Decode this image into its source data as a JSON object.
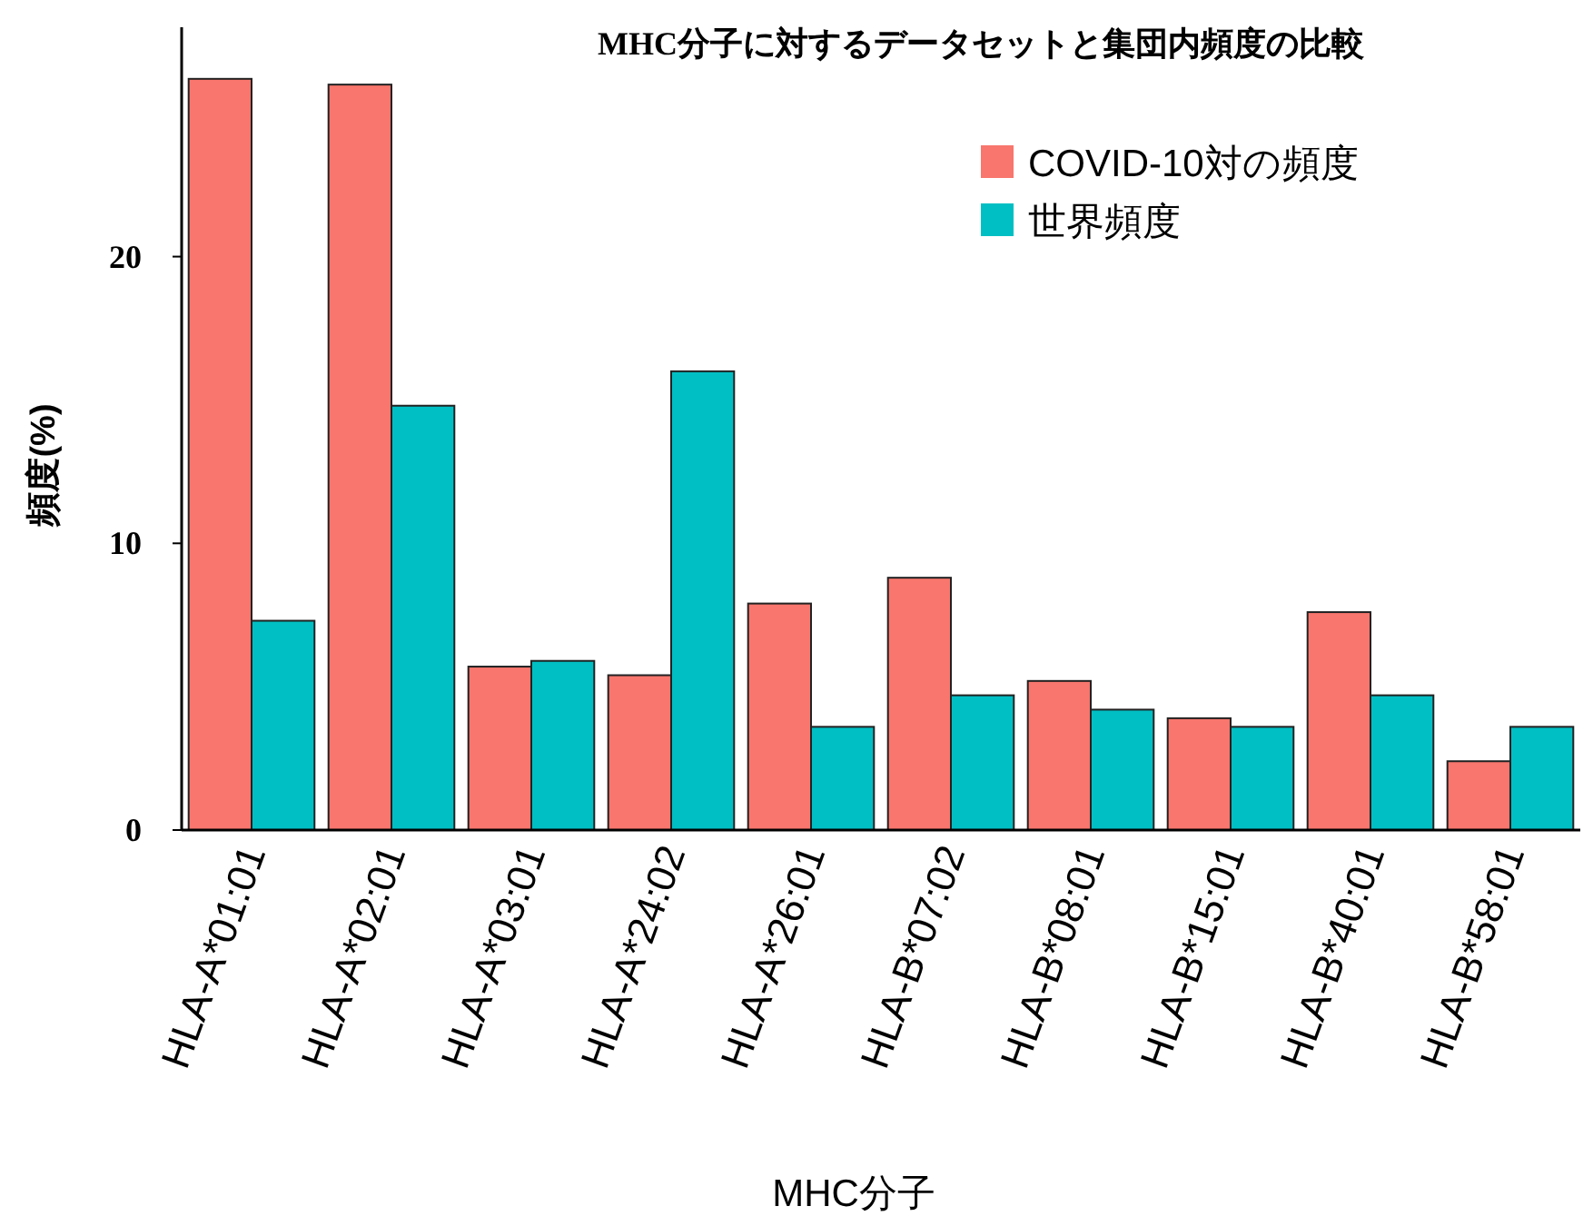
{
  "chart_data": {
    "type": "bar",
    "title": "MHC分子に対するデータセットと集団内頻度の比較",
    "xlabel": "MHC分子",
    "ylabel": "頻度(%)",
    "categories": [
      "HLA-A*01:01",
      "HLA-A*02:01",
      "HLA-A*03:01",
      "HLA-A*24:02",
      "HLA-A*26:01",
      "HLA-B*07:02",
      "HLA-B*08:01",
      "HLA-B*15:01",
      "HLA-B*40:01",
      "HLA-B*58:01"
    ],
    "series": [
      {
        "name": "COVID-10対の頻度",
        "color": "#f8766d",
        "values": [
          26.2,
          26.0,
          5.7,
          5.4,
          7.9,
          8.8,
          5.2,
          3.9,
          7.6,
          2.4
        ]
      },
      {
        "name": "世界頻度",
        "color": "#00bfc4",
        "values": [
          7.3,
          14.8,
          5.9,
          16.0,
          3.6,
          4.7,
          4.2,
          3.6,
          4.7,
          3.6
        ]
      }
    ],
    "ylim": [
      0,
      28
    ],
    "yticks": [
      0,
      10,
      20
    ],
    "grid": false,
    "legend": "top right"
  }
}
